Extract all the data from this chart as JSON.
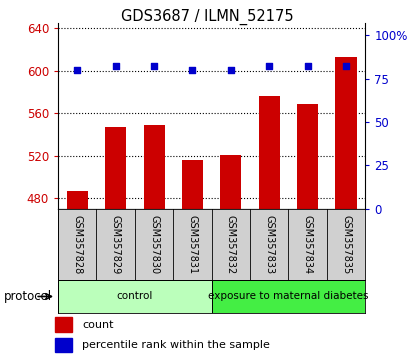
{
  "title": "GDS3687 / ILMN_52175",
  "samples": [
    "GSM357828",
    "GSM357829",
    "GSM357830",
    "GSM357831",
    "GSM357832",
    "GSM357833",
    "GSM357834",
    "GSM357835"
  ],
  "counts": [
    487,
    547,
    549,
    516,
    521,
    576,
    569,
    613
  ],
  "percentile_ranks": [
    80,
    82,
    82,
    80,
    80,
    82,
    82,
    82
  ],
  "bar_color": "#cc0000",
  "dot_color": "#0000cc",
  "ylim_left": [
    470,
    645
  ],
  "ylim_right": [
    0,
    107
  ],
  "yticks_left": [
    480,
    520,
    560,
    600,
    640
  ],
  "yticks_right": [
    0,
    25,
    50,
    75,
    100
  ],
  "yticklabels_right": [
    "0",
    "25",
    "50",
    "75",
    "100%"
  ],
  "groups": [
    {
      "label": "control",
      "indices": [
        0,
        1,
        2,
        3
      ],
      "color": "#bbffbb"
    },
    {
      "label": "exposure to maternal diabetes",
      "indices": [
        4,
        5,
        6,
        7
      ],
      "color": "#44ee44"
    }
  ],
  "protocol_label": "protocol",
  "tick_area_color": "#d0d0d0",
  "bar_bottom": 470,
  "fig_bg": "#ffffff"
}
